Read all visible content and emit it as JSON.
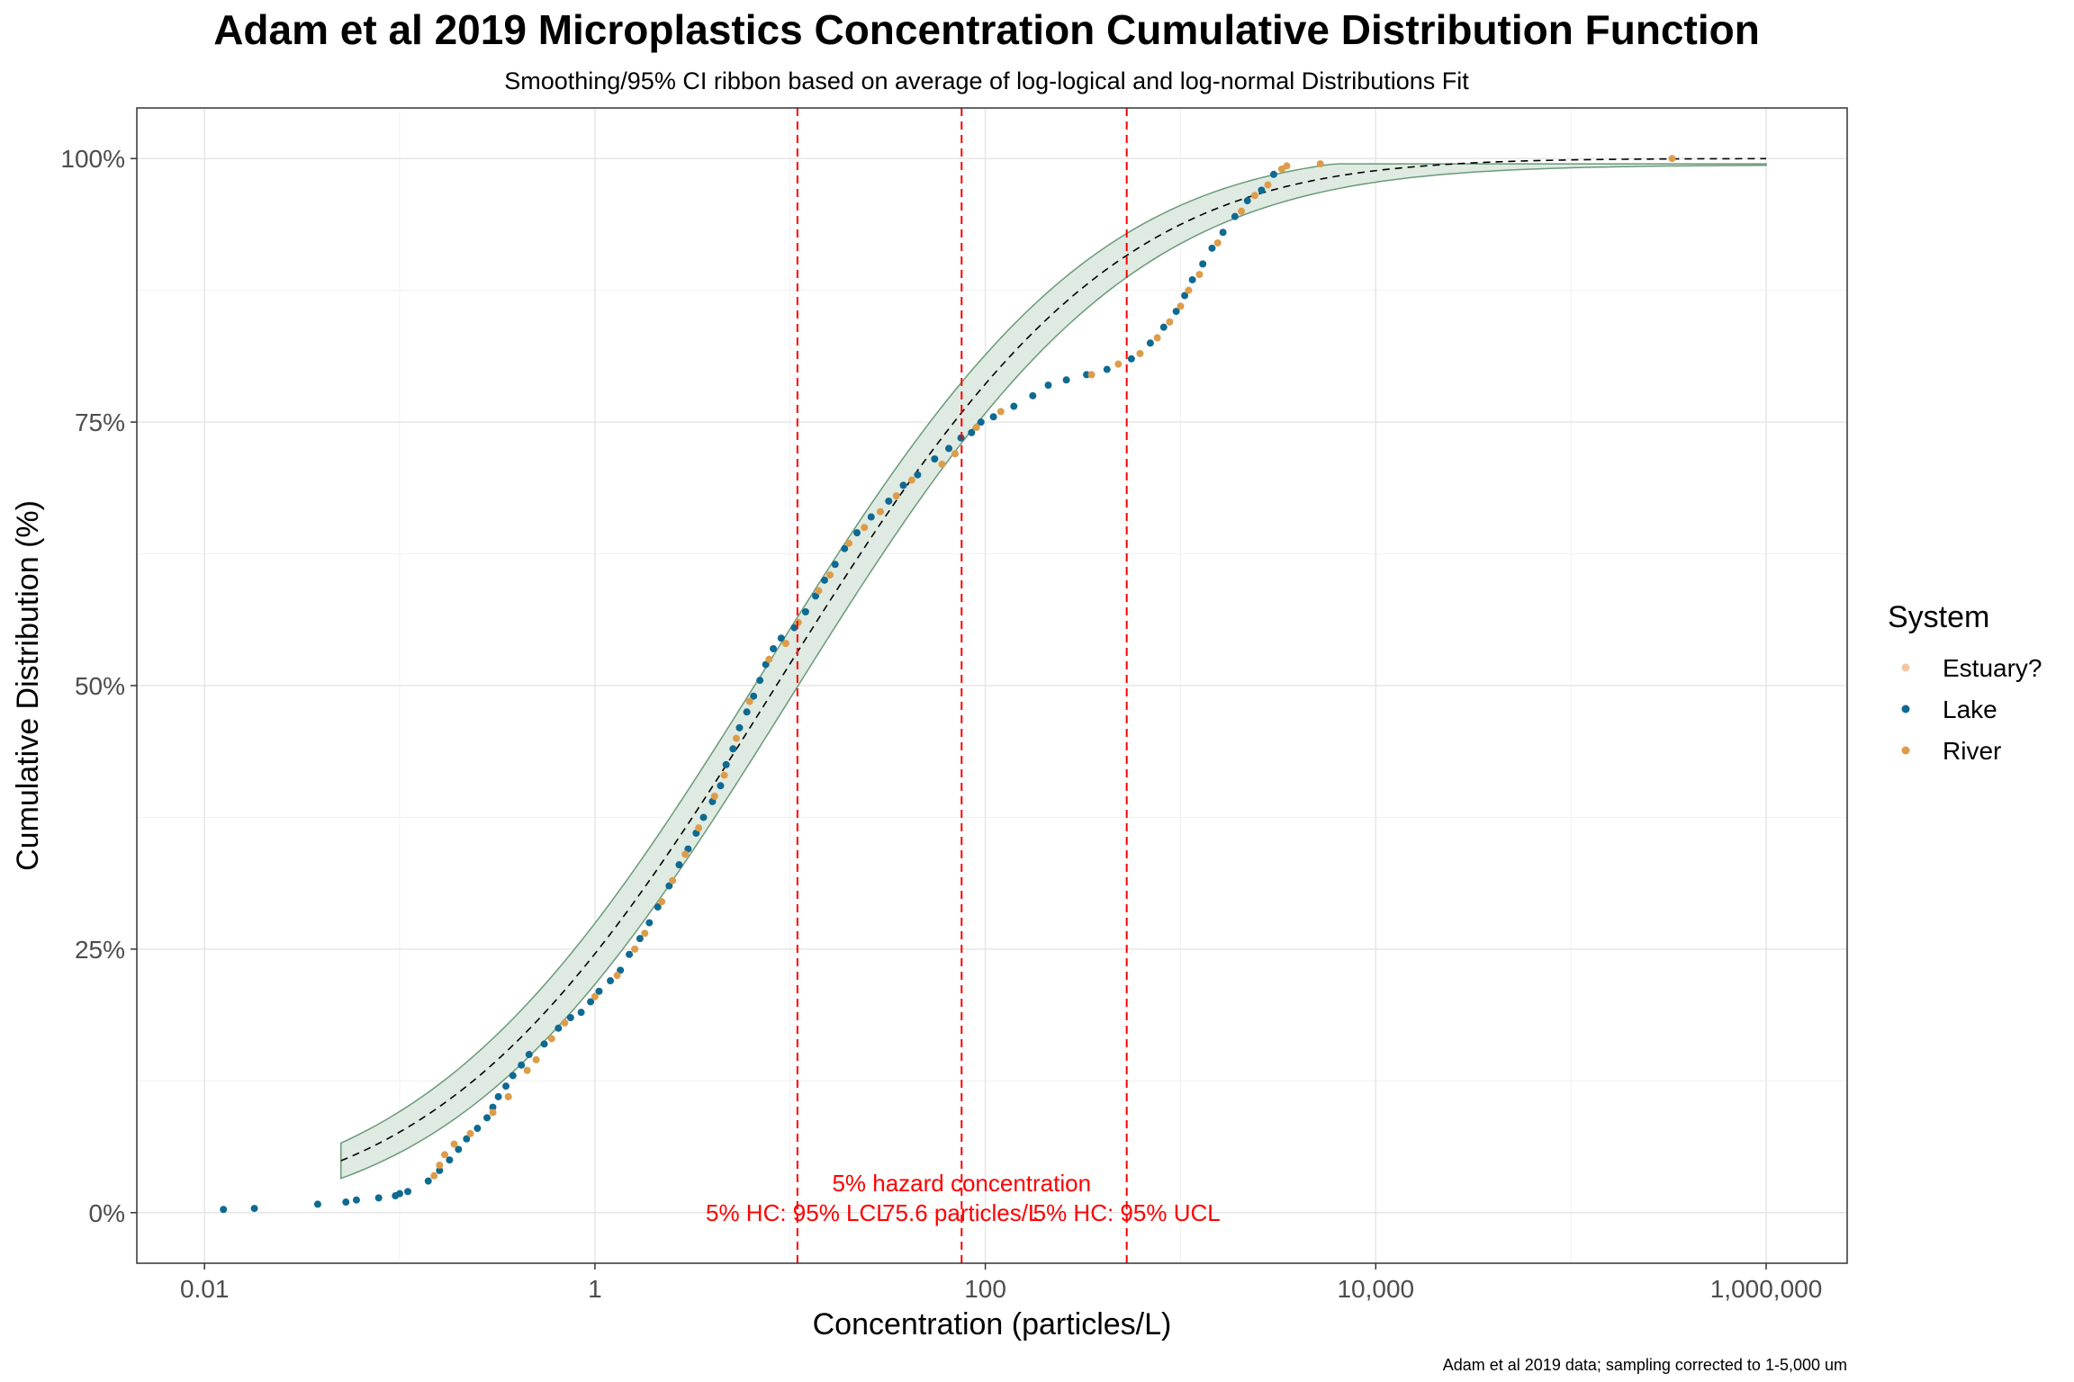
{
  "chart_data": {
    "type": "scatter",
    "title": "Adam et al 2019 Microplastics Concentration Cumulative Distribution Function",
    "subtitle": "Smoothing/95% CI ribbon based on average of log-logical and log-normal Distributions Fit",
    "xlabel": "Concentration (particles/L)",
    "ylabel": "Cumulative Distribution (%)",
    "caption": "Adam et al 2019 data; sampling corrected to 1-5,000 um",
    "x_scale": "log10",
    "xlim": [
      0.0045,
      2600000
    ],
    "ylim": [
      -0.048,
      1.048
    ],
    "x_ticks": [
      {
        "value": 0.01,
        "label": "0.01"
      },
      {
        "value": 1,
        "label": "1"
      },
      {
        "value": 100,
        "label": "100"
      },
      {
        "value": 10000,
        "label": "10,000"
      },
      {
        "value": 1000000,
        "label": "1,000,000"
      }
    ],
    "y_ticks": [
      {
        "value": 0,
        "label": "0%"
      },
      {
        "value": 0.25,
        "label": "25%"
      },
      {
        "value": 0.5,
        "label": "50%"
      },
      {
        "value": 0.75,
        "label": "75%"
      },
      {
        "value": 1.0,
        "label": "100%"
      }
    ],
    "grid": true,
    "legend": {
      "title": "System",
      "position": "right",
      "entries": [
        {
          "label": "Estuary?",
          "color": "#f4c7a4"
        },
        {
          "label": "Lake",
          "color": "#0f6a91"
        },
        {
          "label": "River",
          "color": "#dd9c4a"
        }
      ]
    },
    "fit": {
      "median": 8.5,
      "sdlog10": 1.35,
      "x_range": [
        0.05,
        1000000
      ],
      "line_color": "#000000",
      "ribbon_fill": "#dfeae2",
      "ribbon_stroke": "#6a9a78"
    },
    "vlines": [
      {
        "x": 10.9,
        "color": "#ff0000"
      },
      {
        "x": 75.6,
        "color": "#ff0000"
      },
      {
        "x": 530,
        "color": "#ff0000"
      }
    ],
    "annotations": [
      {
        "text": "5% hazard concentration",
        "x": 75.6,
        "y": 0.028
      },
      {
        "text": "5% HC: 95% LCL",
        "x": 10.9,
        "y": 0.0
      },
      {
        "text": "75.6 particles/L",
        "x": 75.6,
        "y": 0.0
      },
      {
        "text": "5% HC: 95% UCL",
        "x": 530,
        "y": 0.0
      }
    ],
    "series": [
      {
        "name": "Lake",
        "color": "#0f6a91",
        "points": [
          [
            0.0125,
            0.003
          ],
          [
            0.018,
            0.004
          ],
          [
            0.038,
            0.008
          ],
          [
            0.053,
            0.01
          ],
          [
            0.06,
            0.012
          ],
          [
            0.078,
            0.014
          ],
          [
            0.095,
            0.016
          ],
          [
            0.1,
            0.018
          ],
          [
            0.11,
            0.02
          ],
          [
            0.14,
            0.03
          ],
          [
            0.16,
            0.04
          ],
          [
            0.18,
            0.05
          ],
          [
            0.2,
            0.06
          ],
          [
            0.22,
            0.07
          ],
          [
            0.25,
            0.08
          ],
          [
            0.28,
            0.09
          ],
          [
            0.3,
            0.1
          ],
          [
            0.32,
            0.11
          ],
          [
            0.35,
            0.12
          ],
          [
            0.38,
            0.13
          ],
          [
            0.42,
            0.14
          ],
          [
            0.46,
            0.15
          ],
          [
            0.55,
            0.16
          ],
          [
            0.65,
            0.175
          ],
          [
            0.75,
            0.185
          ],
          [
            0.85,
            0.19
          ],
          [
            0.95,
            0.2
          ],
          [
            1.05,
            0.21
          ],
          [
            1.2,
            0.22
          ],
          [
            1.35,
            0.23
          ],
          [
            1.5,
            0.245
          ],
          [
            1.7,
            0.26
          ],
          [
            1.9,
            0.275
          ],
          [
            2.1,
            0.29
          ],
          [
            2.4,
            0.31
          ],
          [
            2.7,
            0.33
          ],
          [
            3.0,
            0.345
          ],
          [
            3.3,
            0.36
          ],
          [
            3.6,
            0.375
          ],
          [
            4.0,
            0.39
          ],
          [
            4.4,
            0.405
          ],
          [
            4.7,
            0.425
          ],
          [
            5.1,
            0.44
          ],
          [
            5.5,
            0.46
          ],
          [
            6.0,
            0.475
          ],
          [
            6.5,
            0.49
          ],
          [
            7.0,
            0.505
          ],
          [
            7.5,
            0.52
          ],
          [
            8.2,
            0.535
          ],
          [
            9.0,
            0.545
          ],
          [
            10.5,
            0.555
          ],
          [
            12.0,
            0.57
          ],
          [
            13.5,
            0.585
          ],
          [
            15.0,
            0.6
          ],
          [
            17.0,
            0.615
          ],
          [
            19.0,
            0.63
          ],
          [
            22.0,
            0.645
          ],
          [
            26.0,
            0.66
          ],
          [
            32.0,
            0.675
          ],
          [
            38.0,
            0.69
          ],
          [
            45.0,
            0.7
          ],
          [
            55.0,
            0.715
          ],
          [
            65.0,
            0.725
          ],
          [
            75.0,
            0.735
          ],
          [
            85.0,
            0.74
          ],
          [
            95.0,
            0.75
          ],
          [
            110.0,
            0.755
          ],
          [
            140.0,
            0.765
          ],
          [
            175.0,
            0.775
          ],
          [
            210.0,
            0.785
          ],
          [
            260.0,
            0.79
          ],
          [
            330.0,
            0.795
          ],
          [
            420.0,
            0.8
          ],
          [
            560.0,
            0.81
          ],
          [
            700.0,
            0.825
          ],
          [
            820.0,
            0.84
          ],
          [
            950.0,
            0.855
          ],
          [
            1050.0,
            0.87
          ],
          [
            1150.0,
            0.885
          ],
          [
            1300.0,
            0.9
          ],
          [
            1450.0,
            0.915
          ],
          [
            1650.0,
            0.93
          ],
          [
            1900.0,
            0.945
          ],
          [
            2200.0,
            0.96
          ],
          [
            2600.0,
            0.97
          ],
          [
            3000.0,
            0.985
          ]
        ]
      },
      {
        "name": "River",
        "color": "#dd9c4a",
        "points": [
          [
            0.15,
            0.035
          ],
          [
            0.16,
            0.045
          ],
          [
            0.17,
            0.055
          ],
          [
            0.19,
            0.065
          ],
          [
            0.23,
            0.075
          ],
          [
            0.3,
            0.095
          ],
          [
            0.36,
            0.11
          ],
          [
            0.45,
            0.135
          ],
          [
            0.5,
            0.145
          ],
          [
            0.6,
            0.165
          ],
          [
            0.7,
            0.18
          ],
          [
            1.0,
            0.205
          ],
          [
            1.3,
            0.225
          ],
          [
            1.6,
            0.25
          ],
          [
            1.8,
            0.265
          ],
          [
            2.2,
            0.295
          ],
          [
            2.5,
            0.315
          ],
          [
            2.9,
            0.34
          ],
          [
            3.4,
            0.365
          ],
          [
            4.1,
            0.395
          ],
          [
            4.6,
            0.415
          ],
          [
            5.3,
            0.45
          ],
          [
            6.2,
            0.485
          ],
          [
            7.8,
            0.525
          ],
          [
            9.5,
            0.54
          ],
          [
            11.0,
            0.56
          ],
          [
            14.0,
            0.59
          ],
          [
            16.0,
            0.605
          ],
          [
            20.0,
            0.635
          ],
          [
            24.0,
            0.65
          ],
          [
            29.0,
            0.665
          ],
          [
            35.0,
            0.68
          ],
          [
            42.0,
            0.695
          ],
          [
            60.0,
            0.71
          ],
          [
            70.0,
            0.72
          ],
          [
            90.0,
            0.745
          ],
          [
            120.0,
            0.76
          ],
          [
            350.0,
            0.795
          ],
          [
            480.0,
            0.805
          ],
          [
            620.0,
            0.815
          ],
          [
            760.0,
            0.83
          ],
          [
            880.0,
            0.845
          ],
          [
            1000.0,
            0.86
          ],
          [
            1100.0,
            0.875
          ],
          [
            1250.0,
            0.89
          ],
          [
            1550.0,
            0.92
          ],
          [
            2050.0,
            0.95
          ],
          [
            2400.0,
            0.965
          ],
          [
            2800.0,
            0.975
          ],
          [
            3300.0,
            0.99
          ],
          [
            3500.0,
            0.993
          ],
          [
            5200.0,
            0.995
          ],
          [
            330000.0,
            1.0
          ]
        ]
      }
    ]
  }
}
